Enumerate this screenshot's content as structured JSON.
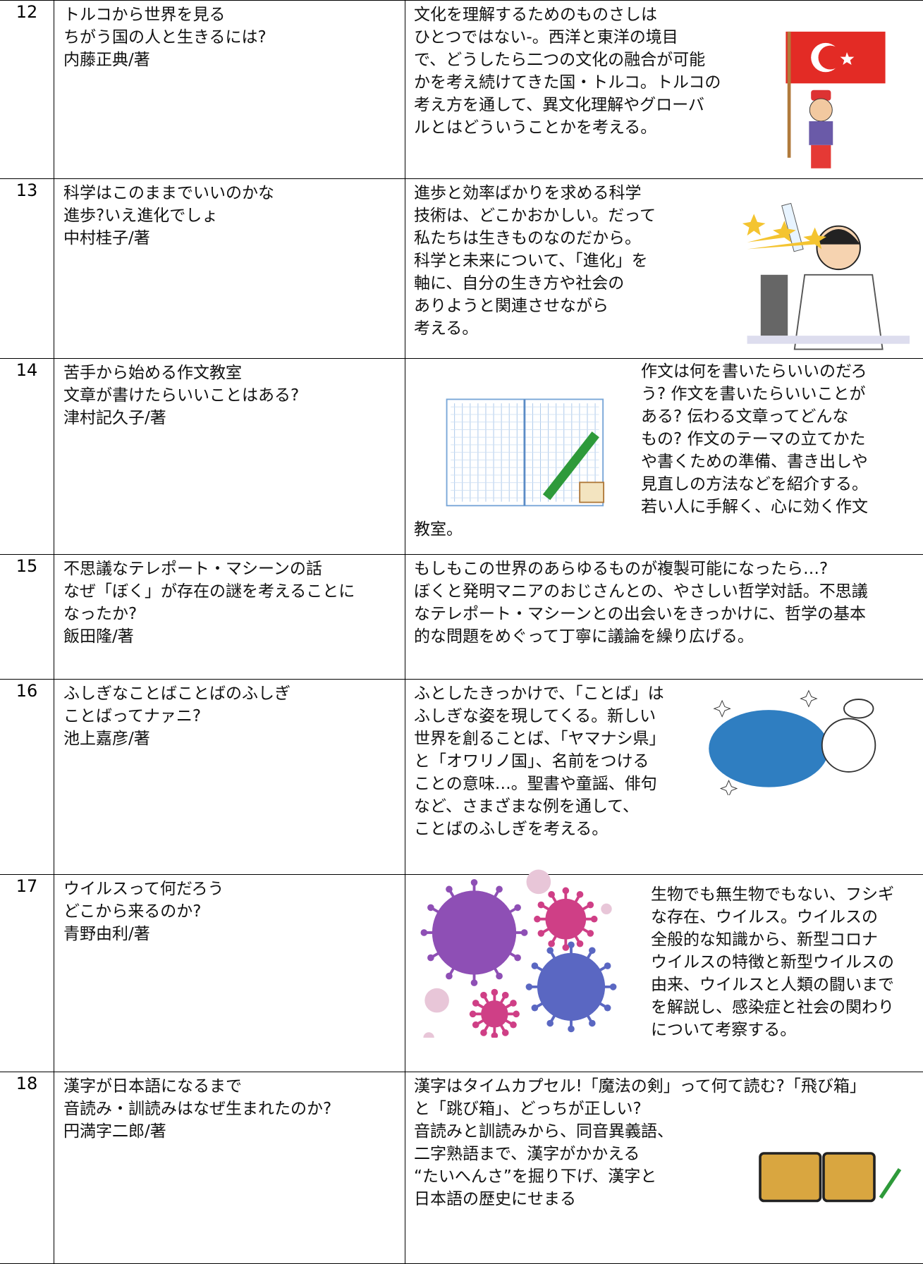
{
  "rows": [
    {
      "number": "12",
      "book": [
        "トルコから世界を見る",
        "ちがう国の人と生きるには?",
        "内藤正典/著"
      ],
      "description": [
        "文化を理解するためのものさしは",
        "ひとつではない-。西洋と東洋の境目",
        "で、どうしたら二つの文化の融合が可能",
        "かを考え続けてきた国・トルコ。トルコの",
        "考え方を通して、異文化理解やグローバ",
        "ルとはどういうことかを考える。"
      ]
    },
    {
      "number": "13",
      "book": [
        "科学はこのままでいいのかな",
        "進歩?いえ進化でしょ",
        "中村桂子/著"
      ],
      "description": [
        "進歩と効率ばかりを求める科学",
        "技術は、どこかおかしい。だって",
        "私たちは生きものなのだから。",
        "科学と未来について、「進化」を",
        "軸に、自分の生き方や社会の",
        "ありようと関連させながら",
        "考える。"
      ]
    },
    {
      "number": "14",
      "book": [
        "苦手から始める作文教室",
        "文章が書けたらいいことはある?",
        "津村記久子/著"
      ],
      "description": [
        "作文は何を書いたらいいのだろ",
        "う? 作文を書いたらいいことが",
        "ある? 伝わる文章ってどんな",
        "もの? 作文のテーマの立てかた",
        "や書くための準備、書き出しや",
        "見直しの方法などを紹介する。",
        "若い人に手解く、心に効く作文",
        "教室。"
      ]
    },
    {
      "number": "15",
      "book": [
        "不思議なテレポート・マシーンの話",
        "なぜ「ぼく」が存在の謎を考えることに",
        "なったか?",
        "飯田隆/著"
      ],
      "description": [
        "もしもこの世界のあらゆるものが複製可能になったら…?",
        "ぼくと発明マニアのおじさんとの、やさしい哲学対話。不思議",
        "なテレポート・マシーンとの出会いをきっかけに、哲学の基本",
        "的な問題をめぐって丁寧に議論を繰り広げる。"
      ]
    },
    {
      "number": "16",
      "book": [
        "ふしぎなことばことばのふしぎ",
        "ことばってナァニ?",
        "池上嘉彦/著"
      ],
      "description": [
        "ふとしたきっかけで、「ことば」は",
        "ふしぎな姿を現してくる。新しい",
        "世界を創ることば、「ヤマナシ県」",
        "と「オワリノ国」、名前をつける",
        "ことの意味…。聖書や童謡、俳句",
        "など、さまざまな例を通して、",
        "ことばのふしぎを考える。"
      ]
    },
    {
      "number": "17",
      "book": [
        "ウイルスって何だろう",
        "どこから来るのか?",
        "青野由利/著"
      ],
      "description": [
        "生物でも無生物でもない、フシギ",
        "な存在、ウイルス。ウイルスの",
        "全般的な知識から、新型コロナ",
        "ウイルスの特徴と新型ウイルスの",
        "由来、ウイルスと人類の闘いまで",
        "を解説し、感染症と社会の関わり",
        "について考察する。"
      ]
    },
    {
      "number": "18",
      "book": [
        "漢字が日本語になるまで",
        "音読み・訓読みはなぜ生まれたのか?",
        "円満字二郎/著"
      ],
      "description": [
        "漢字はタイムカプセル!「魔法の剣」って何て読む?「飛び箱」",
        "と「跳び箱」、どっちが正しい?",
        "音読みと訓読みから、同音異義語、",
        "二字熟語まで、漢字がかかえる",
        "“たいへんさ”を掘り下げ、漢字と",
        "日本語の歴史にせまる"
      ]
    }
  ]
}
